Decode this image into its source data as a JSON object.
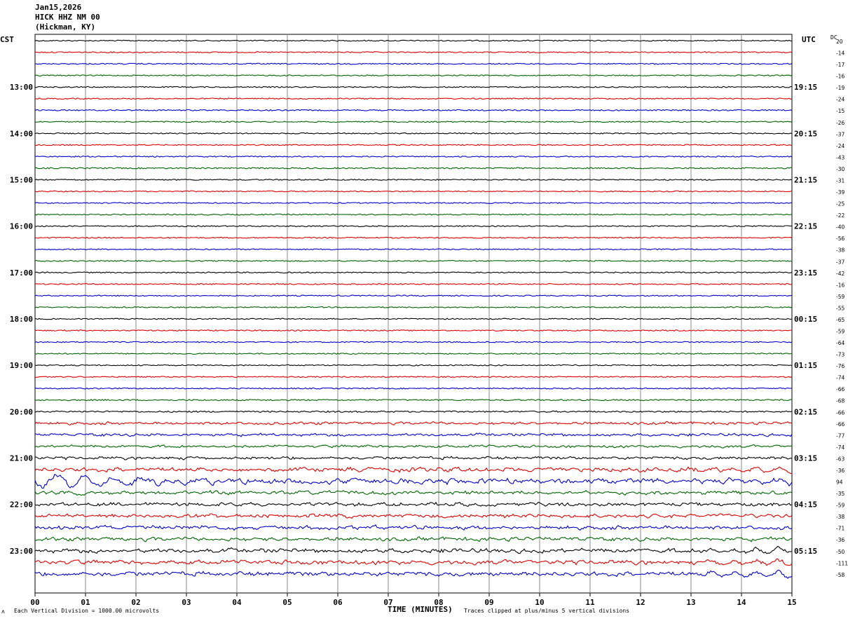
{
  "header": {
    "date": "Jan15,2026",
    "station": "HICK HHZ NM 00",
    "location": "(Hickman, KY)"
  },
  "labels": {
    "left_zone": "CST",
    "right_zone": "UTC",
    "dc_label": "DC",
    "x_axis_title": "TIME (MINUTES)",
    "footer_left": "Each Vertical Division = 1000.00 microvolts",
    "footer_right": "Traces clipped at plus/minus 5 vertical divisions",
    "corner_mark": "ʌ"
  },
  "chart_data": {
    "type": "line",
    "title": "HICK HHZ NM 00",
    "xlabel": "TIME (MINUTES)",
    "xlim": [
      0,
      15
    ],
    "x_ticks": [
      "00",
      "01",
      "02",
      "03",
      "04",
      "05",
      "06",
      "07",
      "08",
      "09",
      "10",
      "11",
      "12",
      "13",
      "14",
      "15"
    ],
    "trace_colors": [
      "#000000",
      "#e00000",
      "#0000d0",
      "#006400"
    ],
    "left_hour_labels": [
      "13:00",
      "14:00",
      "15:00",
      "16:00",
      "17:00",
      "18:00",
      "19:00",
      "20:00",
      "21:00",
      "22:00",
      "23:00"
    ],
    "right_hour_labels": [
      "19:15",
      "20:15",
      "21:15",
      "22:15",
      "23:15",
      "00:15",
      "01:15",
      "02:15",
      "03:15",
      "04:15",
      "05:15"
    ],
    "first_labeled_row": 4,
    "dc_offsets": [
      20,
      -14,
      -17,
      -16,
      -19,
      -24,
      -15,
      -26,
      -37,
      -24,
      -43,
      -30,
      -31,
      -39,
      -25,
      -22,
      -40,
      -56,
      -38,
      -37,
      -42,
      -16,
      -59,
      -55,
      -65,
      -59,
      -64,
      -73,
      -76,
      -74,
      -66,
      -68,
      -66,
      -66,
      -77,
      -74,
      -63,
      -36,
      94,
      -35,
      -59,
      -38,
      -71,
      -36,
      -50,
      -111,
      -58
    ],
    "activity": [
      1,
      1,
      1,
      1,
      1,
      1,
      1.1,
      1,
      1,
      1,
      1,
      1.1,
      1,
      1,
      1,
      1,
      1,
      1,
      1,
      1,
      1,
      1,
      1,
      1,
      1,
      1,
      1,
      1,
      1,
      1,
      1,
      1.2,
      1.3,
      1.6,
      1.6,
      1.6,
      1.8,
      3,
      4,
      2.6,
      2.4,
      2.5,
      2.6,
      2.6,
      3,
      3.2,
      3.2
    ]
  }
}
